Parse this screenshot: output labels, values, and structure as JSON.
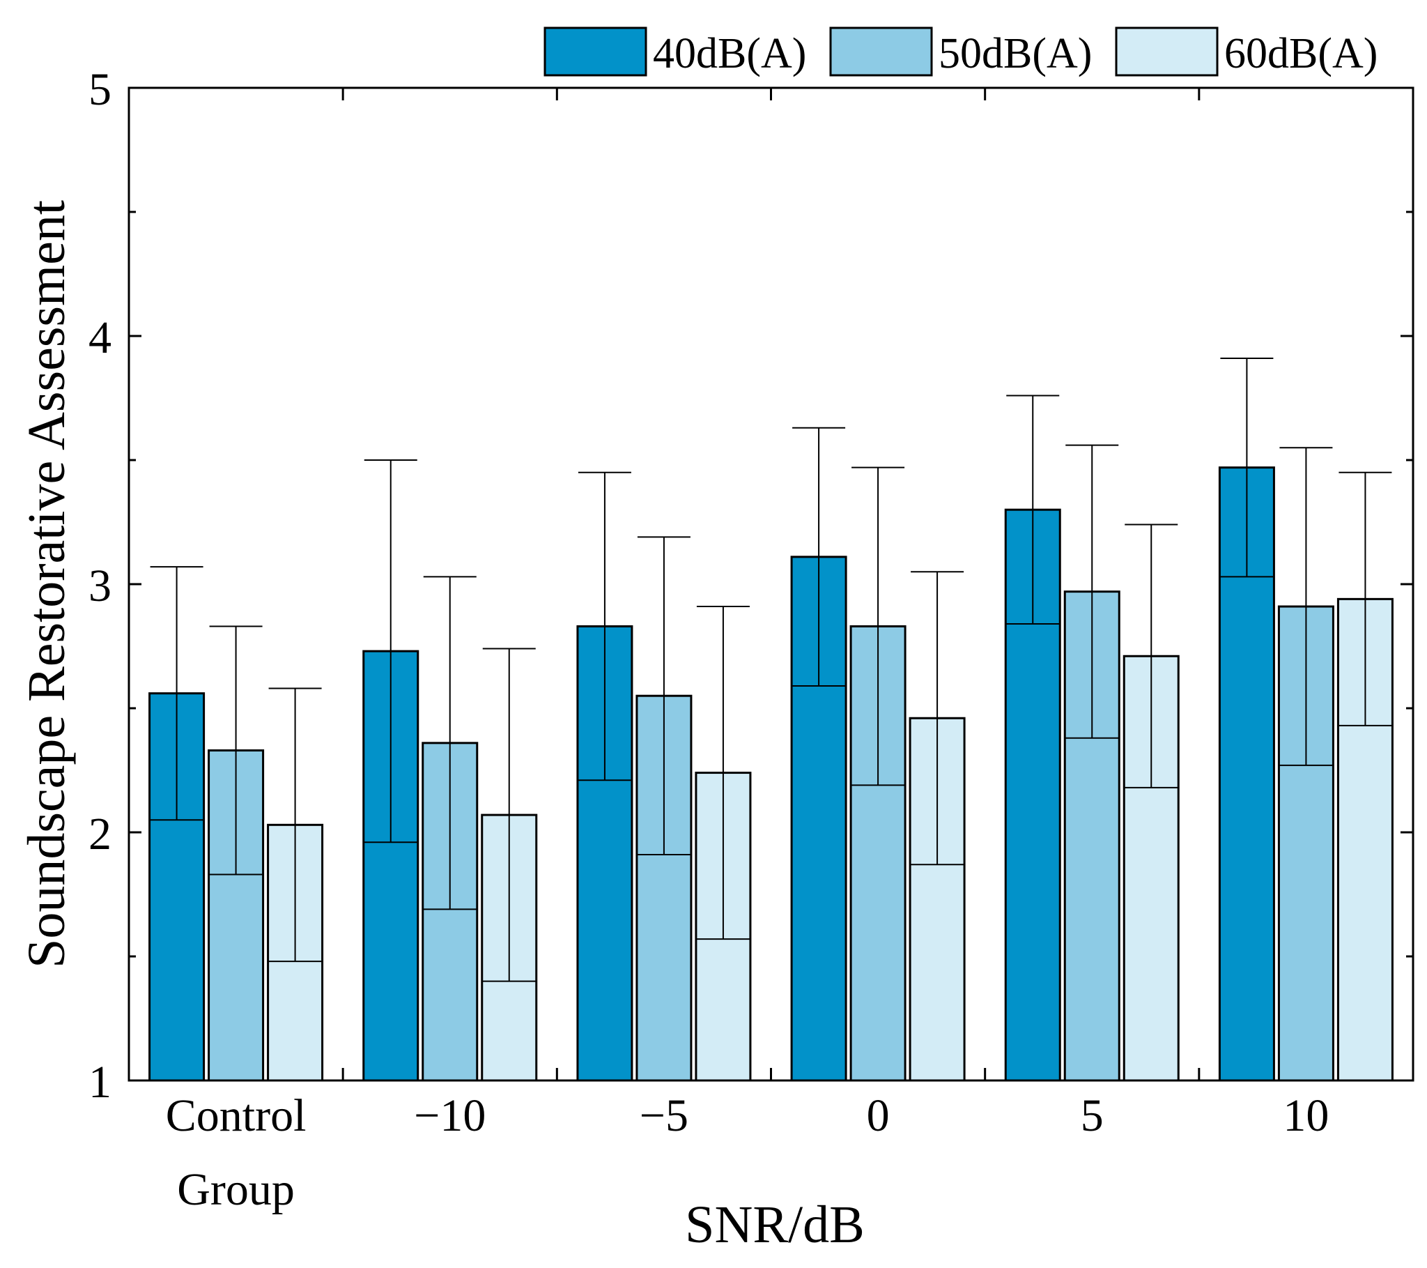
{
  "chart_data": {
    "type": "bar",
    "title": "",
    "xlabel": "SNR/dB",
    "ylabel": "Soundscape Restorative Assessment",
    "ylim": [
      1,
      5
    ],
    "yticks": [
      "1",
      "2",
      "3",
      "4",
      "5"
    ],
    "categories": [
      {
        "line1": "Control",
        "line2": "Group"
      },
      {
        "line1": "−10",
        "line2": ""
      },
      {
        "line1": "−5",
        "line2": ""
      },
      {
        "line1": "0",
        "line2": ""
      },
      {
        "line1": "5",
        "line2": ""
      },
      {
        "line1": "10",
        "line2": ""
      }
    ],
    "series": [
      {
        "name": "40dB(A)",
        "color": "#0292c9",
        "values": [
          2.56,
          2.73,
          2.83,
          3.11,
          3.3,
          3.47
        ],
        "errors": [
          0.51,
          0.77,
          0.62,
          0.52,
          0.46,
          0.44
        ]
      },
      {
        "name": "50dB(A)",
        "color": "#8dcbe5",
        "values": [
          2.33,
          2.36,
          2.55,
          2.83,
          2.97,
          2.91
        ],
        "errors": [
          0.5,
          0.67,
          0.64,
          0.64,
          0.59,
          0.64
        ]
      },
      {
        "name": "60dB(A)",
        "color": "#d3ecf6",
        "values": [
          2.03,
          2.07,
          2.24,
          2.46,
          2.71,
          2.94
        ],
        "errors": [
          0.55,
          0.67,
          0.67,
          0.59,
          0.53,
          0.51
        ]
      }
    ],
    "grid": false,
    "legend_position": "top-right"
  }
}
